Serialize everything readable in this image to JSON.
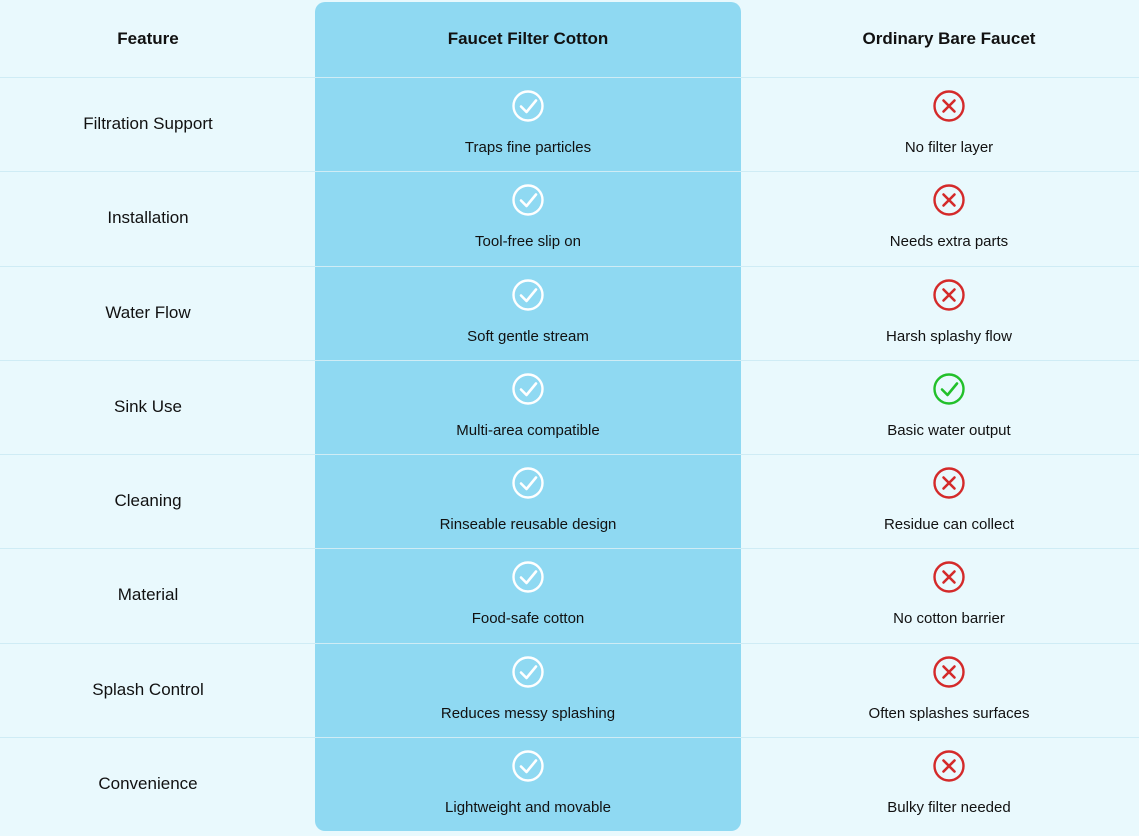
{
  "header": [
    "Feature",
    "Faucet Filter Cotton",
    "Ordinary Bare Faucet"
  ],
  "rows": [
    {
      "feature": "Filtration Support",
      "filter": "Traps fine particles",
      "filter_ok": true,
      "ordinary": "No filter layer",
      "ordinary_ok": false
    },
    {
      "feature": "Installation",
      "filter": "Tool-free slip on",
      "filter_ok": true,
      "ordinary": "Needs extra parts",
      "ordinary_ok": false
    },
    {
      "feature": "Water Flow",
      "filter": "Soft gentle stream",
      "filter_ok": true,
      "ordinary": "Harsh splashy flow",
      "ordinary_ok": false
    },
    {
      "feature": "Sink Use",
      "filter": "Multi-area compatible",
      "filter_ok": true,
      "ordinary": "Basic water output",
      "ordinary_ok": true
    },
    {
      "feature": "Cleaning",
      "filter": "Rinseable reusable design",
      "filter_ok": true,
      "ordinary": "Residue can collect",
      "ordinary_ok": false
    },
    {
      "feature": "Material",
      "filter": "Food-safe cotton",
      "filter_ok": true,
      "ordinary": "No cotton barrier",
      "ordinary_ok": false
    },
    {
      "feature": "Splash Control",
      "filter": "Reduces messy splashing",
      "filter_ok": true,
      "ordinary": "Often splashes surfaces",
      "ordinary_ok": false
    },
    {
      "feature": "Convenience",
      "filter": "Lightweight and movable",
      "filter_ok": true,
      "ordinary": "Bulky filter needed",
      "ordinary_ok": false
    }
  ]
}
